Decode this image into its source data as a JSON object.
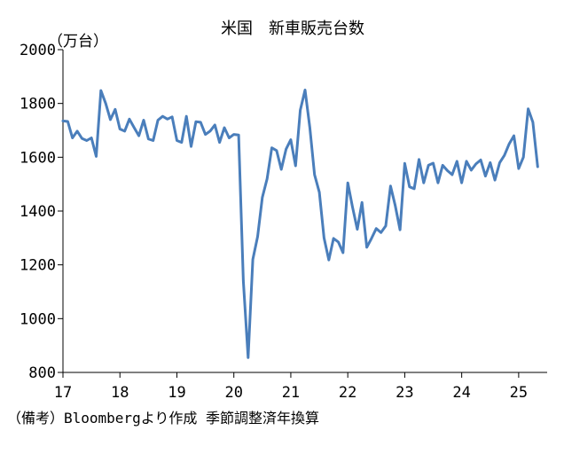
{
  "chart_data": {
    "type": "line",
    "title": "米国　新車販売台数",
    "unit_label": "（万台）",
    "note": "（備考）Bloombergより作成 季節調整済年換算",
    "xlabel": "",
    "ylabel": "",
    "ylim": [
      800,
      2000
    ],
    "y_ticks": [
      800,
      1000,
      1200,
      1400,
      1600,
      1800,
      2000
    ],
    "x_range": [
      2017.0,
      2025.5
    ],
    "x_tick_labels": [
      "17",
      "18",
      "19",
      "20",
      "21",
      "22",
      "23",
      "24",
      "25"
    ],
    "grid": false,
    "legend": "none",
    "colors": {
      "series": "#4a7ebb",
      "axis": "#000000"
    },
    "series": [
      {
        "values": [
          1735,
          1733,
          1672,
          1697,
          1670,
          1662,
          1672,
          1603,
          1848,
          1800,
          1740,
          1778,
          1705,
          1697,
          1742,
          1710,
          1680,
          1738,
          1668,
          1662,
          1738,
          1752,
          1742,
          1750,
          1662,
          1655,
          1752,
          1640,
          1732,
          1730,
          1685,
          1697,
          1720,
          1655,
          1710,
          1672,
          1685,
          1683,
          1140,
          855,
          1220,
          1305,
          1450,
          1520,
          1635,
          1625,
          1555,
          1630,
          1665,
          1568,
          1775,
          1850,
          1710,
          1535,
          1470,
          1300,
          1218,
          1298,
          1285,
          1245,
          1505,
          1415,
          1332,
          1432,
          1265,
          1298,
          1335,
          1320,
          1345,
          1493,
          1420,
          1330,
          1577,
          1490,
          1483,
          1592,
          1505,
          1570,
          1578,
          1505,
          1570,
          1550,
          1535,
          1585,
          1505,
          1585,
          1552,
          1575,
          1590,
          1530,
          1580,
          1515,
          1580,
          1607,
          1650,
          1680,
          1558,
          1600,
          1780,
          1730,
          1565
        ]
      }
    ]
  }
}
